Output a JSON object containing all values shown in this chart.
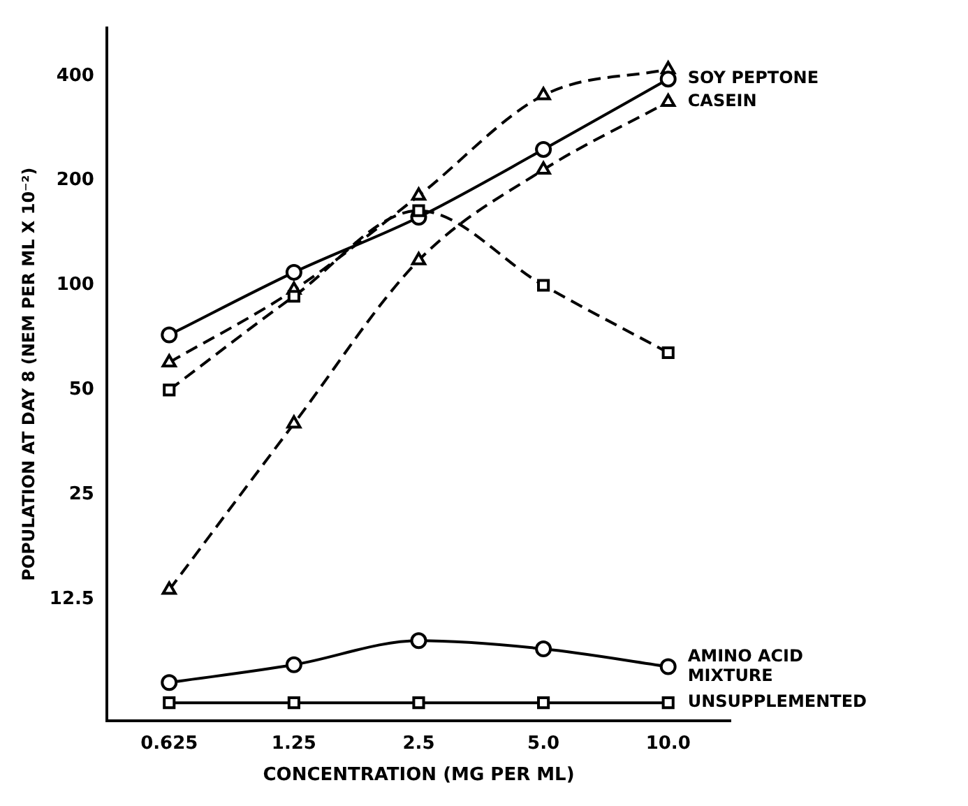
{
  "chart_data": {
    "type": "line",
    "xlabel": "CONCENTRATION (MG PER ML)",
    "ylabel": "POPULATION AT DAY 8 (NEM PER ML X 10⁻²)",
    "categories": [
      "0.625",
      "1.25",
      "2.5",
      "5.0",
      "10.0"
    ],
    "log": true,
    "ylim": [
      5.6,
      550
    ],
    "yticks": [
      12.5,
      25,
      50,
      100,
      200,
      400
    ],
    "grid": false,
    "legend": false,
    "series": [
      {
        "color": "#000000",
        "marker": "triangle",
        "line_style": "dashed",
        "values": [
          60,
          97,
          181,
          352,
          418
        ]
      },
      {
        "name": "SOY PEPTONE",
        "color": "#000000",
        "marker": "circle",
        "line_style": "solid",
        "values": [
          72,
          109,
          157,
          246,
          392
        ]
      },
      {
        "name": "CASEIN",
        "color": "#000000",
        "marker": "triangle",
        "line_style": "dashed",
        "values": [
          13.3,
          40,
          118,
          215,
          337
        ]
      },
      {
        "color": "#000000",
        "marker": "square",
        "line_style": "dashed",
        "values": [
          50,
          93,
          164,
          100,
          64
        ]
      },
      {
        "name": "AMINO ACID MIXTURE",
        "color": "#000000",
        "marker": "circle",
        "line_style": "solid",
        "values": [
          7.2,
          8.1,
          9.5,
          9.0,
          8.0
        ]
      },
      {
        "name": "UNSUPPLEMENTED",
        "color": "#000000",
        "marker": "square",
        "line_style": "solid",
        "values": [
          6.3,
          6.3,
          6.3,
          6.3,
          6.3
        ]
      }
    ]
  }
}
